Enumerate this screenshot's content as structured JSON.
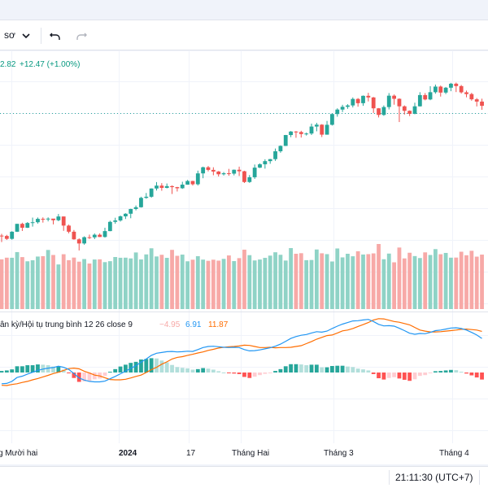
{
  "toolbar": {
    "timeframe_label": "sơ",
    "dropdown_icon": "chevron-down-icon",
    "undo_icon": "undo-icon",
    "redo_icon": "redo-icon"
  },
  "legend": {
    "price_text": "2.82",
    "change_text": "+12.47 (+1.00%)",
    "change_color": "#089981"
  },
  "macd": {
    "label": "ân kỳ/Hội tụ trung bình 12 26 close 9",
    "hist_value": "−4.95",
    "macd_value": "6.91",
    "signal_value": "11.87",
    "hist_color": "#f7a9a7",
    "macd_color": "#2196f3",
    "signal_color": "#ff6d00"
  },
  "time_axis": {
    "labels": [
      "g Mười hai",
      "2024",
      "17",
      "Tháng Hai",
      "Tháng 3",
      "Tháng 4"
    ]
  },
  "status": {
    "time_readout": "21:11:30 (UTC+7)"
  },
  "colors": {
    "up": "#26a69a",
    "down": "#ef5350",
    "volume_up": "#8fd3c6",
    "volume_down": "#f7a9a7",
    "last_price_line": "#26a69a"
  },
  "chart_data": {
    "type": "candlestick",
    "series": [
      {
        "name": "price",
        "values": [
          [
            1221.5,
            1221.2,
            1222.9,
            1216.3
          ],
          [
            1221.2,
            1218.9,
            1222.1,
            1218.0
          ],
          [
            1218.9,
            1224.6,
            1225.0,
            1218.2
          ],
          [
            1224.6,
            1230.9,
            1230.9,
            1224.4
          ],
          [
            1230.9,
            1227.8,
            1231.8,
            1225.2
          ],
          [
            1227.8,
            1231.6,
            1232.3,
            1227.6
          ],
          [
            1231.6,
            1232.2,
            1235.9,
            1228.7
          ],
          [
            1232.2,
            1234.9,
            1236.0,
            1231.1
          ],
          [
            1234.9,
            1234.5,
            1236.1,
            1231.9
          ],
          [
            1234.5,
            1235.1,
            1236.1,
            1232.9
          ],
          [
            1235.1,
            1233.8,
            1234.5,
            1230.5
          ],
          [
            1233.8,
            1236.8,
            1238.8,
            1233.0
          ],
          [
            1236.8,
            1229.5,
            1236.8,
            1225.3
          ],
          [
            1229.5,
            1224.6,
            1230.3,
            1223.3
          ],
          [
            1224.6,
            1218.5,
            1226.0,
            1218.2
          ],
          [
            1218.5,
            1215.2,
            1219.3,
            1209.6
          ],
          [
            1215.2,
            1220.2,
            1220.9,
            1214.2
          ],
          [
            1220.2,
            1220.1,
            1222.3,
            1218.8
          ],
          [
            1220.1,
            1222.2,
            1223.2,
            1218.7
          ],
          [
            1222.2,
            1220.4,
            1223.3,
            1220.3
          ],
          [
            1220.4,
            1225.1,
            1227.8,
            1219.9
          ],
          [
            1225.1,
            1232.5,
            1233.4,
            1225.0
          ],
          [
            1232.5,
            1233.6,
            1235.8,
            1231.0
          ],
          [
            1233.6,
            1236.9,
            1237.6,
            1232.7
          ],
          [
            1236.9,
            1239.0,
            1239.4,
            1234.8
          ],
          [
            1239.0,
            1242.8,
            1243.0,
            1235.4
          ],
          [
            1242.8,
            1244.2,
            1245.6,
            1241.7
          ],
          [
            1244.2,
            1251.7,
            1252.6,
            1243.9
          ],
          [
            1251.7,
            1252.6,
            1255.6,
            1251.0
          ],
          [
            1252.6,
            1259.2,
            1259.3,
            1251.8
          ],
          [
            1259.2,
            1261.5,
            1264.3,
            1257.6
          ],
          [
            1261.5,
            1259.7,
            1263.5,
            1257.4
          ],
          [
            1259.7,
            1261.1,
            1263.2,
            1259.3
          ],
          [
            1261.1,
            1260.3,
            1261.7,
            1254.8
          ],
          [
            1260.3,
            1259.4,
            1260.5,
            1256.8
          ],
          [
            1259.4,
            1262.3,
            1264.6,
            1258.9
          ],
          [
            1262.3,
            1265.2,
            1266.1,
            1262.2
          ],
          [
            1265.2,
            1262.6,
            1265.4,
            1261.6
          ],
          [
            1262.6,
            1271.3,
            1273.5,
            1261.6
          ],
          [
            1271.3,
            1276.2,
            1276.7,
            1267.4
          ],
          [
            1276.2,
            1274.1,
            1277.2,
            1272.9
          ],
          [
            1274.1,
            1272.8,
            1276.2,
            1269.8
          ],
          [
            1272.8,
            1270.6,
            1273.2,
            1268.8
          ],
          [
            1270.6,
            1271.4,
            1272.4,
            1269.6
          ],
          [
            1271.4,
            1271.1,
            1274.9,
            1269.4
          ],
          [
            1271.1,
            1274.2,
            1274.4,
            1269.7
          ],
          [
            1274.2,
            1273.0,
            1276.7,
            1269.2
          ],
          [
            1273.0,
            1264.4,
            1273.4,
            1263.6
          ],
          [
            1264.4,
            1268.2,
            1270.0,
            1263.7
          ],
          [
            1268.2,
            1275.9,
            1278.4,
            1266.9
          ],
          [
            1275.9,
            1278.6,
            1279.3,
            1275.6
          ],
          [
            1278.6,
            1281.1,
            1282.6,
            1275.1
          ],
          [
            1281.1,
            1282.7,
            1282.9,
            1279.0
          ],
          [
            1282.7,
            1289.0,
            1291.2,
            1281.3
          ],
          [
            1289.0,
            1293.3,
            1293.7,
            1287.8
          ],
          [
            1293.3,
            1302.0,
            1302.1,
            1293.2
          ],
          [
            1302.0,
            1304.8,
            1305.2,
            1300.3
          ],
          [
            1304.8,
            1304.4,
            1305.2,
            1299.8
          ],
          [
            1304.4,
            1302.8,
            1305.4,
            1300.0
          ],
          [
            1302.8,
            1303.2,
            1304.0,
            1301.6
          ],
          [
            1303.2,
            1308.8,
            1311.1,
            1302.0
          ],
          [
            1308.8,
            1310.3,
            1311.8,
            1305.0
          ],
          [
            1310.3,
            1302.3,
            1310.7,
            1300.4
          ],
          [
            1302.3,
            1310.2,
            1313.3,
            1302.3
          ],
          [
            1310.2,
            1318.8,
            1319.1,
            1309.6
          ],
          [
            1318.8,
            1322.4,
            1323.4,
            1316.7
          ],
          [
            1322.4,
            1324.6,
            1326.2,
            1320.4
          ],
          [
            1324.6,
            1325.7,
            1326.7,
            1323.0
          ],
          [
            1325.7,
            1330.9,
            1332.1,
            1324.1
          ],
          [
            1330.9,
            1327.5,
            1331.6,
            1324.7
          ],
          [
            1327.5,
            1333.4,
            1333.7,
            1325.4
          ],
          [
            1333.4,
            1332.1,
            1335.8,
            1328.9
          ],
          [
            1332.1,
            1323.4,
            1332.5,
            1319.7
          ],
          [
            1323.4,
            1318.1,
            1323.6,
            1316.1
          ],
          [
            1318.1,
            1324.4,
            1325.7,
            1317.4
          ],
          [
            1324.4,
            1333.5,
            1335.6,
            1322.5
          ],
          [
            1333.5,
            1331.0,
            1334.5,
            1326.3
          ],
          [
            1331.0,
            1325.0,
            1331.4,
            1312.4
          ],
          [
            1325.0,
            1321.4,
            1325.7,
            1318.4
          ],
          [
            1321.4,
            1319.0,
            1321.7,
            1317.2
          ],
          [
            1319.0,
            1325.0,
            1327.9,
            1318.6
          ],
          [
            1325.0,
            1334.0,
            1336.3,
            1324.8
          ],
          [
            1334.0,
            1330.5,
            1335.6,
            1329.8
          ],
          [
            1330.5,
            1336.3,
            1341.1,
            1329.9
          ],
          [
            1336.3,
            1340.8,
            1342.4,
            1335.1
          ],
          [
            1340.8,
            1336.0,
            1341.6,
            1332.8
          ],
          [
            1336.0,
            1339.9,
            1340.5,
            1334.8
          ],
          [
            1339.9,
            1343.1,
            1343.8,
            1337.1
          ],
          [
            1343.1,
            1341.2,
            1344.0,
            1336.4
          ],
          [
            1341.2,
            1336.2,
            1342.1,
            1335.2
          ],
          [
            1336.2,
            1334.8,
            1337.6,
            1332.2
          ],
          [
            1334.8,
            1330.6,
            1335.8,
            1329.5
          ],
          [
            1330.6,
            1328.8,
            1331.6,
            1324.9
          ],
          [
            1328.8,
            1325.4,
            1331.1,
            1322.2
          ]
        ]
      },
      {
        "name": "volume",
        "values": [
          535,
          553,
          552,
          613,
          559,
          514,
          525,
          565,
          569,
          636,
          582,
          480,
          590,
          526,
          554,
          510,
          538,
          490,
          533,
          535,
          505,
          515,
          560,
          552,
          553,
          545,
          609,
          534,
          588,
          654,
          566,
          584,
          551,
          637,
          573,
          586,
          514,
          531,
          569,
          532,
          519,
          531,
          521,
          540,
          577,
          516,
          548,
          639,
          580,
          523,
          533,
          551,
          575,
          611,
          584,
          522,
          656,
          595,
          601,
          526,
          528,
          641,
          600,
          591,
          512,
          652,
          556,
          595,
          568,
          622,
          587,
          591,
          599,
          700,
          536,
          597,
          503,
          662,
          545,
          606,
          570,
          549,
          610,
          582,
          645,
          590,
          604,
          553,
          554,
          617,
          579,
          627,
          564,
          586
        ]
      },
      {
        "name": "macd_histogram",
        "values": [
          0.6,
          0.8,
          1.2,
          2.4,
          2.4,
          2.8,
          2.8,
          3.1,
          3.0,
          2.8,
          2.3,
          2.4,
          1.1,
          -0.3,
          -2.1,
          -3.6,
          -3.4,
          -3.2,
          -2.6,
          -2.3,
          -1.3,
          0.3,
          1.3,
          2.3,
          3.0,
          3.7,
          4.1,
          5.0,
          5.2,
          5.5,
          5.4,
          4.6,
          3.9,
          2.9,
          2.1,
          1.8,
          1.6,
          1.1,
          1.3,
          1.7,
          1.5,
          1.1,
          0.5,
          0.0,
          -0.3,
          -0.4,
          -0.6,
          -1.7,
          -2.1,
          -1.6,
          -1.0,
          -0.5,
          -0.2,
          0.6,
          1.3,
          2.4,
          3.2,
          3.2,
          3.1,
          2.8,
          3.0,
          3.0,
          2.0,
          2.0,
          2.5,
          2.6,
          2.6,
          2.3,
          2.1,
          1.5,
          1.2,
          0.8,
          -0.6,
          -2.2,
          -2.7,
          -2.1,
          -1.8,
          -2.3,
          -2.8,
          -3.2,
          -2.6,
          -1.3,
          -1.0,
          -0.2,
          0.5,
          0.6,
          0.8,
          1.0,
          0.9,
          0.3,
          -0.4,
          -1.1,
          -1.9,
          -2.7
        ]
      },
      {
        "name": "macd_line",
        "values": [
          -4.3,
          -4.2,
          -3.4,
          -1.9,
          -1.4,
          -0.6,
          0.1,
          0.8,
          1.3,
          1.7,
          1.9,
          2.4,
          2.0,
          1.2,
          -0.4,
          -2.1,
          -2.9,
          -3.4,
          -3.6,
          -3.6,
          -3.3,
          -2.4,
          -1.5,
          -0.5,
          0.5,
          1.6,
          2.6,
          4.0,
          5.2,
          6.6,
          7.4,
          7.7,
          8.0,
          8.1,
          7.9,
          8.0,
          8.2,
          8.1,
          8.8,
          9.6,
          10.0,
          10.1,
          9.9,
          9.7,
          9.6,
          9.7,
          9.6,
          8.8,
          8.3,
          8.4,
          8.7,
          9.1,
          9.5,
          10.1,
          10.9,
          12.0,
          13.1,
          13.8,
          14.3,
          14.6,
          15.2,
          15.7,
          15.5,
          15.9,
          16.9,
          17.8,
          18.6,
          19.2,
          19.8,
          19.9,
          20.2,
          20.4,
          19.6,
          18.5,
          17.9,
          18.0,
          17.8,
          17.0,
          16.1,
          15.1,
          14.7,
          15.0,
          14.9,
          15.4,
          16.1,
          16.3,
          16.7,
          17.1,
          17.2,
          16.9,
          16.3,
          15.4,
          14.4,
          13.1
        ]
      },
      {
        "name": "signal_line",
        "values": [
          -4.9,
          -5.0,
          -4.6,
          -4.3,
          -3.8,
          -3.4,
          -2.8,
          -2.3,
          -1.7,
          -1.1,
          -0.4,
          0.1,
          0.8,
          1.5,
          1.7,
          1.4,
          0.5,
          -0.2,
          -1.0,
          -1.3,
          -2.0,
          -2.7,
          -2.8,
          -2.8,
          -2.6,
          -2.1,
          -1.5,
          -1.0,
          0.0,
          1.1,
          2.0,
          3.2,
          4.1,
          5.2,
          5.8,
          6.1,
          6.6,
          7.0,
          7.5,
          7.9,
          8.5,
          8.9,
          9.4,
          9.7,
          9.9,
          10.0,
          10.2,
          10.5,
          10.4,
          10.0,
          9.6,
          9.6,
          9.7,
          9.5,
          9.6,
          9.6,
          9.7,
          10.0,
          10.3,
          11.1,
          11.9,
          12.8,
          13.5,
          14.2,
          14.4,
          15.2,
          16.0,
          16.3,
          16.9,
          17.7,
          18.4,
          19.2,
          20.2,
          20.7,
          20.6,
          20.1,
          19.6,
          19.3,
          18.8,
          18.3,
          17.3,
          16.3,
          15.9,
          15.6,
          15.6,
          15.7,
          15.9,
          16.1,
          16.3,
          16.6,
          16.7,
          16.5,
          16.3,
          15.8
        ]
      }
    ]
  }
}
